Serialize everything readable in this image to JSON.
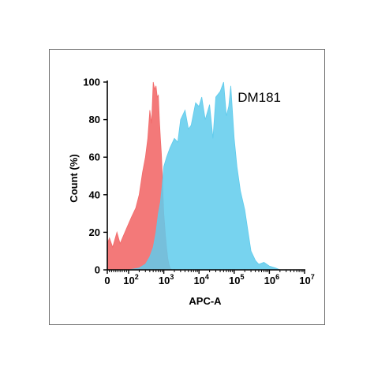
{
  "chart_data": {
    "type": "area",
    "title": "",
    "annotation": "DM181",
    "xlabel": "APC-A",
    "ylabel": "Count  (%)",
    "x_scale": "biexponential",
    "xlim": [
      0,
      10000000
    ],
    "ylim": [
      0,
      100
    ],
    "y_ticks": [
      "0",
      "20",
      "40",
      "60",
      "80",
      "100"
    ],
    "x_ticks": [
      {
        "value": 0,
        "base": "0",
        "exp": ""
      },
      {
        "value": 100,
        "base": "10",
        "exp": "2"
      },
      {
        "value": 1000,
        "base": "10",
        "exp": "3"
      },
      {
        "value": 10000,
        "base": "10",
        "exp": "4"
      },
      {
        "value": 100000,
        "base": "10",
        "exp": "5"
      },
      {
        "value": 1000000,
        "base": "10",
        "exp": "6"
      },
      {
        "value": 10000000,
        "base": "10",
        "exp": "7"
      }
    ],
    "grid": false,
    "series": [
      {
        "color": "#f26a6a",
        "opacity": 0.9,
        "x": [
          0,
          10,
          25,
          45,
          60,
          90,
          120,
          160,
          200,
          250,
          300,
          350,
          400,
          450,
          500,
          550,
          600,
          650,
          700,
          750,
          800,
          850,
          900,
          950,
          1000,
          1100,
          1200,
          1300,
          1400,
          1500,
          1700,
          2000,
          2500
        ],
        "y": [
          14,
          17,
          12,
          20,
          14,
          22,
          28,
          33,
          40,
          52,
          60,
          70,
          85,
          78,
          100,
          96,
          98,
          92,
          93,
          80,
          70,
          62,
          52,
          40,
          30,
          20,
          12,
          6,
          3,
          1,
          0,
          0,
          0
        ]
      },
      {
        "color": "#5fcbec",
        "opacity": 0.85,
        "x": [
          100,
          200,
          300,
          400,
          500,
          600,
          700,
          800,
          900,
          1000,
          1200,
          1500,
          2000,
          2500,
          3000,
          4000,
          5000,
          6000,
          8000,
          10000,
          12000,
          15000,
          20000,
          25000,
          30000,
          40000,
          50000,
          60000,
          70000,
          80000,
          100000,
          120000,
          150000,
          200000,
          250000,
          300000,
          400000,
          500000,
          700000,
          1000000,
          1500000,
          2000000
        ],
        "y": [
          0,
          1,
          3,
          7,
          12,
          20,
          30,
          36,
          45,
          55,
          60,
          65,
          70,
          68,
          80,
          85,
          75,
          77,
          89,
          87,
          92,
          80,
          88,
          70,
          92,
          95,
          100,
          82,
          87,
          98,
          70,
          55,
          42,
          32,
          20,
          10,
          5,
          3,
          4,
          2,
          1,
          0
        ]
      }
    ]
  }
}
